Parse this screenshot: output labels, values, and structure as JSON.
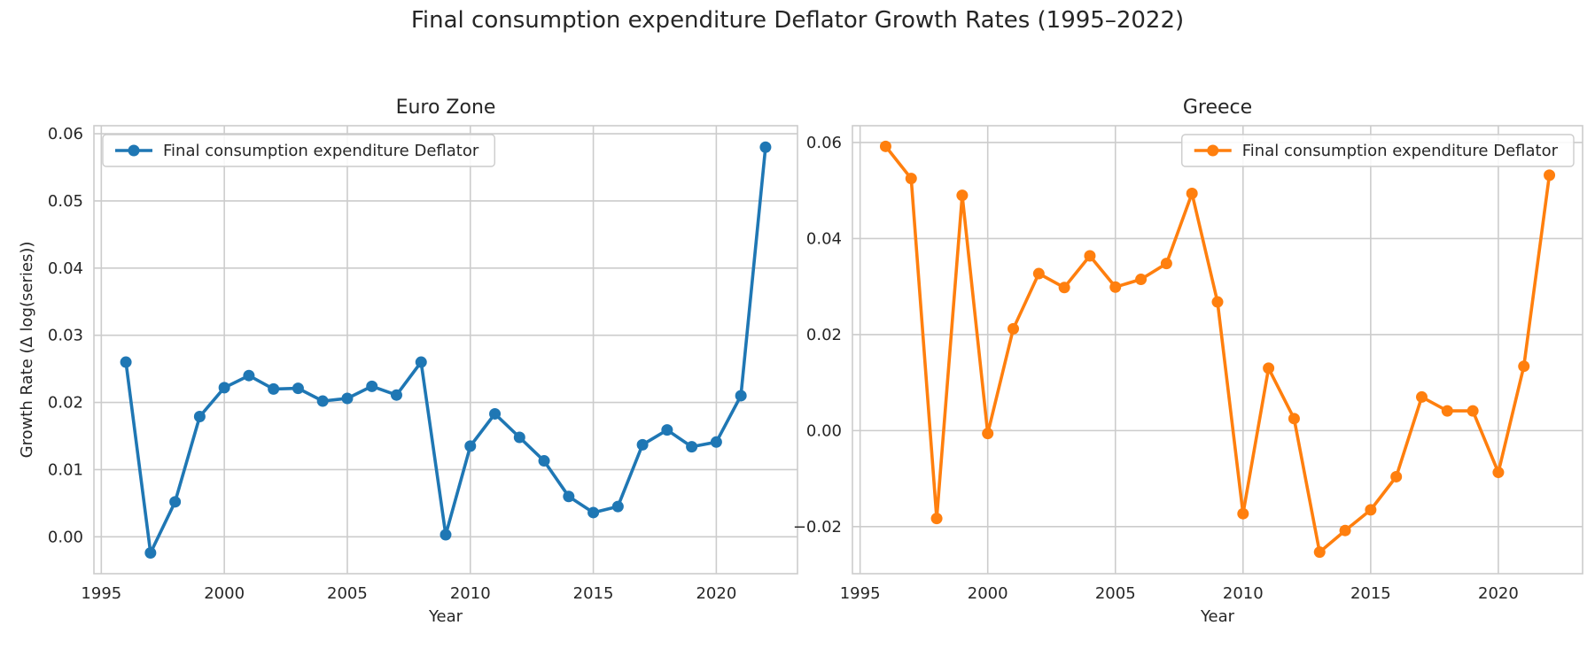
{
  "figure_title": "Final consumption expenditure Deflator Growth Rates (1995–2022)",
  "chart_data": [
    {
      "type": "line",
      "title": "Euro Zone",
      "xlabel": "Year",
      "ylabel": "Growth Rate (Δ log(series))",
      "xlim": [
        1994.7,
        2023.3
      ],
      "ylim": [
        -0.0055,
        0.0612
      ],
      "xticks": [
        1995,
        2000,
        2005,
        2010,
        2015,
        2020
      ],
      "yticks": [
        0.0,
        0.01,
        0.02,
        0.03,
        0.04,
        0.05,
        0.06
      ],
      "ytick_labels": [
        "0.00",
        "0.01",
        "0.02",
        "0.03",
        "0.04",
        "0.05",
        "0.06"
      ],
      "grid": true,
      "legend_position": "top-left",
      "color": "#1f77b4",
      "series": [
        {
          "name": "Final consumption expenditure Deflator",
          "x": [
            1996,
            1997,
            1998,
            1999,
            2000,
            2001,
            2002,
            2003,
            2004,
            2005,
            2006,
            2007,
            2008,
            2009,
            2010,
            2011,
            2012,
            2013,
            2014,
            2015,
            2016,
            2017,
            2018,
            2019,
            2020,
            2021,
            2022
          ],
          "y": [
            0.026,
            -0.0024,
            0.0052,
            0.0179,
            0.0222,
            0.024,
            0.022,
            0.0221,
            0.0202,
            0.0206,
            0.0224,
            0.0211,
            0.026,
            0.0003,
            0.0135,
            0.0183,
            0.0148,
            0.0113,
            0.006,
            0.0036,
            0.0045,
            0.0137,
            0.0159,
            0.0134,
            0.0141,
            0.021,
            0.058
          ]
        }
      ]
    },
    {
      "type": "line",
      "title": "Greece",
      "xlabel": "Year",
      "ylabel": "",
      "xlim": [
        1994.7,
        2023.3
      ],
      "ylim": [
        -0.0298,
        0.0635
      ],
      "xticks": [
        1995,
        2000,
        2005,
        2010,
        2015,
        2020
      ],
      "yticks": [
        -0.02,
        0.0,
        0.02,
        0.04,
        0.06
      ],
      "ytick_labels": [
        "−0.02",
        "0.00",
        "0.02",
        "0.04",
        "0.06"
      ],
      "grid": true,
      "legend_position": "top-right",
      "color": "#ff7f0e",
      "series": [
        {
          "name": "Final consumption expenditure Deflator",
          "x": [
            1996,
            1997,
            1998,
            1999,
            2000,
            2001,
            2002,
            2003,
            2004,
            2005,
            2006,
            2007,
            2008,
            2009,
            2010,
            2011,
            2012,
            2013,
            2014,
            2015,
            2016,
            2017,
            2018,
            2019,
            2020,
            2021,
            2022
          ],
          "y": [
            0.0592,
            0.0525,
            -0.0183,
            0.049,
            -0.0006,
            0.0212,
            0.0327,
            0.0298,
            0.0364,
            0.0299,
            0.0315,
            0.0348,
            0.0494,
            0.0268,
            -0.0173,
            0.013,
            0.0025,
            -0.0253,
            -0.0208,
            -0.0165,
            -0.0096,
            0.007,
            0.0041,
            0.0041,
            -0.0087,
            0.0134,
            0.0532
          ]
        }
      ]
    }
  ]
}
